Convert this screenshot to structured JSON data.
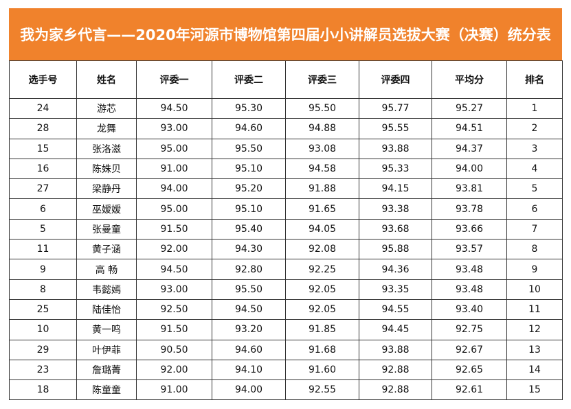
{
  "header": {
    "title": "我为家乡代言——2020年河源市博物馆第四届小小讲解员选拔大赛（决赛）统分表"
  },
  "table": {
    "columns": [
      "选手号",
      "姓名",
      "评委一",
      "评委二",
      "评委三",
      "评委四",
      "平均分",
      "排名"
    ],
    "rows": [
      [
        "24",
        "游芯",
        "94.50",
        "95.30",
        "95.50",
        "95.77",
        "95.27",
        "1"
      ],
      [
        "28",
        "龙舞",
        "93.00",
        "94.60",
        "94.88",
        "95.55",
        "94.51",
        "2"
      ],
      [
        "15",
        "张洛滋",
        "95.00",
        "95.50",
        "93.08",
        "93.88",
        "94.37",
        "3"
      ],
      [
        "16",
        "陈姝贝",
        "91.00",
        "95.10",
        "94.58",
        "95.33",
        "94.00",
        "4"
      ],
      [
        "27",
        "梁静丹",
        "94.00",
        "95.20",
        "91.88",
        "94.15",
        "93.81",
        "5"
      ],
      [
        "6",
        "巫嫒嫒",
        "95.00",
        "95.10",
        "91.65",
        "93.38",
        "93.78",
        "6"
      ],
      [
        "5",
        "张曼童",
        "91.50",
        "95.40",
        "94.05",
        "93.68",
        "93.66",
        "7"
      ],
      [
        "11",
        "黄子涵",
        "92.00",
        "94.30",
        "92.08",
        "95.88",
        "93.57",
        "8"
      ],
      [
        "9",
        "高 畅",
        "94.50",
        "92.80",
        "92.25",
        "94.36",
        "93.48",
        "9"
      ],
      [
        "8",
        "韦懿嫣",
        "93.00",
        "95.50",
        "92.05",
        "93.35",
        "93.48",
        "10"
      ],
      [
        "25",
        "陆佳怡",
        "92.50",
        "94.50",
        "92.05",
        "94.55",
        "93.40",
        "11"
      ],
      [
        "10",
        "黄一鸣",
        "91.50",
        "93.20",
        "91.85",
        "94.45",
        "92.75",
        "12"
      ],
      [
        "29",
        "叶伊菲",
        "90.50",
        "94.60",
        "91.68",
        "93.88",
        "92.67",
        "13"
      ],
      [
        "23",
        "詹璐菁",
        "92.00",
        "94.10",
        "91.60",
        "92.88",
        "92.65",
        "14"
      ],
      [
        "18",
        "陈童童",
        "91.00",
        "94.00",
        "92.55",
        "92.88",
        "92.61",
        "15"
      ]
    ]
  }
}
